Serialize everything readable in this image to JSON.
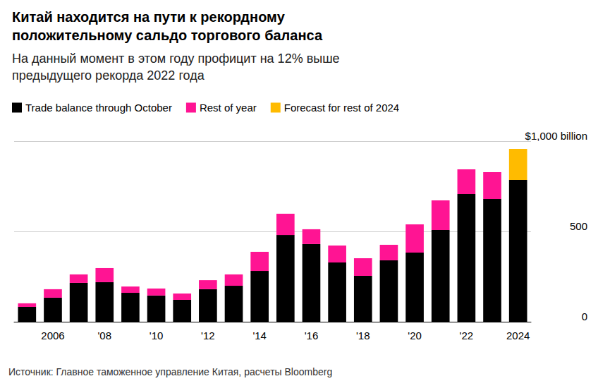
{
  "chart_data": {
    "type": "bar",
    "title": "Китай находится на пути к рекордному положительному сальдо торгового баланса",
    "subtitle": "На данный момент в этом году профицит на 12% выше предыдущего рекорда 2022 года",
    "source": "Источник: Главное таможенное управление Китая, расчеты Bloomberg",
    "categories": [
      null,
      "2006",
      null,
      "'08",
      null,
      "'10",
      null,
      "'12",
      null,
      "'14",
      null,
      "'16",
      null,
      "'18",
      null,
      "'20",
      null,
      "'22",
      null,
      "2024"
    ],
    "series": [
      {
        "name": "Trade balance through October",
        "color": "#000000",
        "values": [
          82,
          133,
          215,
          219,
          160,
          145,
          121,
          180,
          199,
          281,
          480,
          430,
          328,
          254,
          340,
          383,
          508,
          707,
          680,
          785
        ]
      },
      {
        "name": "Rest of year",
        "color": "#ff1493",
        "values": [
          20,
          47,
          47,
          78,
          35,
          39,
          35,
          50,
          63,
          106,
          118,
          82,
          94,
          98,
          86,
          156,
          164,
          137,
          148,
          null
        ]
      },
      {
        "name": "Forecast for rest of 2024",
        "color": "#ffbb00",
        "values": [
          null,
          null,
          null,
          null,
          null,
          null,
          null,
          null,
          null,
          null,
          null,
          null,
          null,
          null,
          null,
          null,
          null,
          null,
          null,
          172
        ]
      }
    ],
    "stacked": true,
    "ylim": [
      0,
      1000
    ],
    "yticks": [
      0,
      500,
      {
        "value": 1000,
        "label": "$1,000 billion"
      }
    ],
    "grid": true,
    "legend": "top-left"
  }
}
